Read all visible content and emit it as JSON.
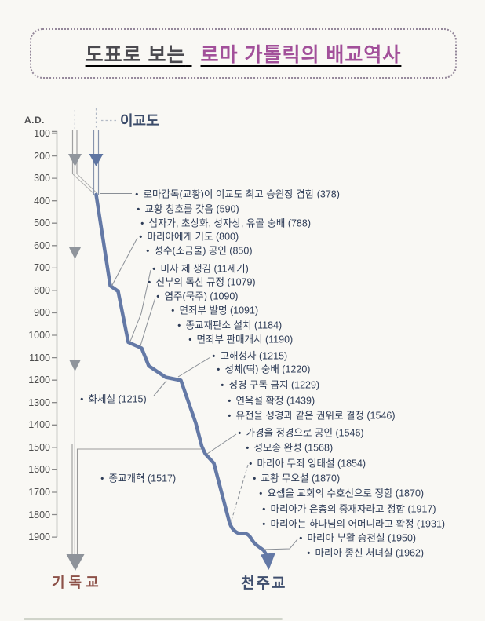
{
  "title": {
    "prefix": "도표로 보는",
    "highlight": "로마 가톨릭의 배교역사"
  },
  "axis": {
    "label": "A.D.",
    "years": [
      100,
      200,
      300,
      400,
      500,
      600,
      700,
      800,
      900,
      1000,
      1100,
      1200,
      1300,
      1400,
      1500,
      1600,
      1700,
      1800,
      1900
    ]
  },
  "branches": {
    "pagan": "이교도",
    "christianity": "기독교",
    "catholicism": "천주교"
  },
  "events": [
    {
      "text": "로마감독(교황)이 이교도 최고 승원장 겸함 (378)"
    },
    {
      "text": "교황 칭호를 갖음 (590)"
    },
    {
      "text": "십자가, 초상화, 성자상, 유골 숭배 (788)"
    },
    {
      "text": "마리아에게 기도 (800)"
    },
    {
      "text": "성수(소금물) 공인 (850)"
    },
    {
      "text": "미사 제 생김 (11세기)"
    },
    {
      "text": "신부의 독신 규정 (1079)"
    },
    {
      "text": "염주(묵주) (1090)"
    },
    {
      "text": "면죄부 발명 (1091)"
    },
    {
      "text": "종교재판소 설치 (1184)"
    },
    {
      "text": "면죄부 판매개시 (1190)"
    },
    {
      "text": "고해성사 (1215)"
    },
    {
      "text": "성체(떡) 숭배 (1220)"
    },
    {
      "text": "성경 구독 금지 (1229)"
    },
    {
      "text": "연옥설 확정 (1439)"
    },
    {
      "text": "유전을 성경과 같은 권위로 결정 (1546)"
    },
    {
      "text": "가경을 정경으로 공인 (1546)"
    },
    {
      "text": "성모송 완성 (1568)"
    },
    {
      "text": "마리아 무죄 잉태설 (1854)"
    },
    {
      "text": "교황 무오설 (1870)"
    },
    {
      "text": "요셉을 교회의 수호신으로 정함 (1870)"
    },
    {
      "text": "마리아가 은총의 중재자라고 정함 (1917)"
    },
    {
      "text": "마리아는 하나님의 어머니라고 확정 (1931)"
    },
    {
      "text": "마리아 부활 승천설 (1950)"
    },
    {
      "text": "마리아 종신 처녀설 (1962)"
    }
  ],
  "side_events": [
    {
      "text": "화체설 (1215)"
    },
    {
      "text": "종교개혁 (1517)"
    }
  ],
  "colors": {
    "title_highlight": "#a2509a",
    "title_prefix": "#4b4a4f",
    "catholic_line": "#6479a6",
    "christian_line": "#9a9a9a",
    "christianity_label": "#8d5148",
    "catholicism_label": "#404f6e",
    "event_text": "#2e3c57"
  }
}
